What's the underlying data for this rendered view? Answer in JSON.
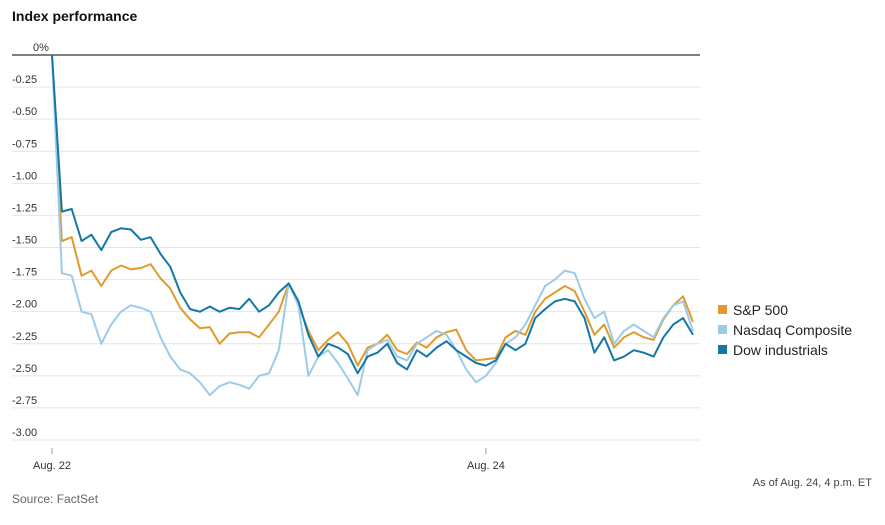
{
  "chart_data": {
    "type": "line",
    "title": "Index performance",
    "source": "Source: FactSet",
    "note": "As of Aug. 24, 4 p.m. ET",
    "categories": [
      "Aug. 22",
      null,
      null,
      null,
      null,
      null,
      null,
      null,
      null,
      null,
      null,
      null,
      null,
      null,
      null,
      null,
      null,
      null,
      null,
      null,
      null,
      null,
      null,
      null,
      null,
      null,
      null,
      null,
      null,
      null,
      null,
      null,
      null,
      null,
      null,
      null,
      null,
      null,
      null,
      null,
      null,
      null,
      null,
      null,
      "Aug. 24",
      null,
      null,
      null,
      null,
      null,
      null,
      null,
      null,
      null,
      null,
      null,
      null,
      null,
      null,
      null,
      null,
      null,
      null,
      null,
      null,
      null
    ],
    "series": [
      {
        "name": "S&P 500",
        "color": "#e09a2e",
        "values": [
          0,
          -1.45,
          -1.42,
          -1.72,
          -1.68,
          -1.8,
          -1.68,
          -1.64,
          -1.67,
          -1.66,
          -1.63,
          -1.74,
          -1.82,
          -1.97,
          -2.06,
          -2.13,
          -2.12,
          -2.25,
          -2.17,
          -2.16,
          -2.16,
          -2.2,
          -2.1,
          -2.0,
          -1.78,
          -1.95,
          -2.15,
          -2.3,
          -2.22,
          -2.16,
          -2.25,
          -2.42,
          -2.28,
          -2.25,
          -2.18,
          -2.3,
          -2.33,
          -2.24,
          -2.28,
          -2.2,
          -2.16,
          -2.14,
          -2.3,
          -2.38,
          -2.37,
          -2.36,
          -2.2,
          -2.15,
          -2.18,
          -2.0,
          -1.9,
          -1.85,
          -1.8,
          -1.84,
          -2.0,
          -2.18,
          -2.1,
          -2.28,
          -2.2,
          -2.16,
          -2.2,
          -2.22,
          -2.06,
          -1.95,
          -1.88,
          -2.08
        ]
      },
      {
        "name": "Nasdaq Composite",
        "color": "#9ccbea",
        "values": [
          0,
          -1.7,
          -1.72,
          -2.0,
          -2.02,
          -2.25,
          -2.1,
          -2.0,
          -1.95,
          -1.97,
          -2.0,
          -2.2,
          -2.35,
          -2.45,
          -2.48,
          -2.55,
          -2.65,
          -2.58,
          -2.55,
          -2.57,
          -2.6,
          -2.5,
          -2.48,
          -2.3,
          -1.78,
          -1.95,
          -2.5,
          -2.35,
          -2.3,
          -2.4,
          -2.52,
          -2.65,
          -2.3,
          -2.25,
          -2.22,
          -2.35,
          -2.38,
          -2.25,
          -2.2,
          -2.15,
          -2.18,
          -2.3,
          -2.45,
          -2.55,
          -2.5,
          -2.4,
          -2.25,
          -2.2,
          -2.1,
          -1.95,
          -1.8,
          -1.75,
          -1.68,
          -1.7,
          -1.9,
          -2.05,
          -2.0,
          -2.25,
          -2.15,
          -2.1,
          -2.15,
          -2.2,
          -2.05,
          -1.95,
          -1.92,
          -2.15
        ]
      },
      {
        "name": "Dow industrials",
        "color": "#1477a6",
        "values": [
          0,
          -1.22,
          -1.2,
          -1.45,
          -1.4,
          -1.52,
          -1.38,
          -1.35,
          -1.36,
          -1.44,
          -1.42,
          -1.55,
          -1.65,
          -1.85,
          -1.98,
          -2.0,
          -1.96,
          -2.0,
          -1.97,
          -1.98,
          -1.9,
          -2.0,
          -1.95,
          -1.85,
          -1.78,
          -1.92,
          -2.18,
          -2.35,
          -2.25,
          -2.28,
          -2.33,
          -2.48,
          -2.35,
          -2.32,
          -2.25,
          -2.4,
          -2.45,
          -2.3,
          -2.35,
          -2.28,
          -2.23,
          -2.3,
          -2.35,
          -2.4,
          -2.42,
          -2.38,
          -2.25,
          -2.3,
          -2.25,
          -2.05,
          -1.98,
          -1.92,
          -1.9,
          -1.92,
          -2.05,
          -2.32,
          -2.2,
          -2.38,
          -2.35,
          -2.3,
          -2.32,
          -2.35,
          -2.2,
          -2.1,
          -2.05,
          -2.18
        ]
      }
    ],
    "ylim": [
      -3,
      0
    ],
    "yticks": [
      {
        "value": 0,
        "label": "0%"
      },
      -0.25,
      {
        "value": -0.5,
        "label": "-0.50"
      },
      -0.75,
      {
        "value": -1,
        "label": "-1.00"
      },
      -1.25,
      {
        "value": -1.5,
        "label": "-1.50"
      },
      -1.75,
      {
        "value": -2,
        "label": "-2.00"
      },
      -2.25,
      {
        "value": -2.5,
        "label": "-2.50"
      },
      -2.75,
      {
        "value": -3,
        "label": "-3.00"
      }
    ],
    "grid": true,
    "legend": "right"
  }
}
